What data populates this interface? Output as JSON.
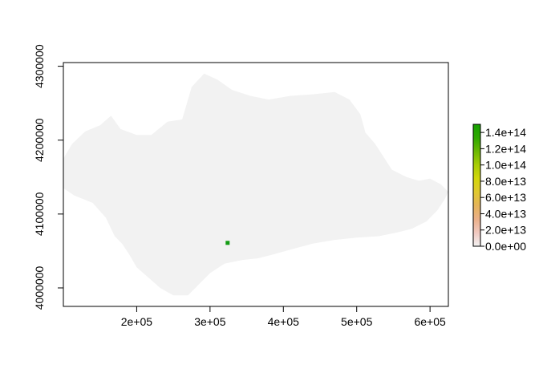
{
  "chart_data": {
    "type": "heatmap",
    "title": "",
    "xlabel": "",
    "ylabel": "",
    "xlim": [
      100000,
      625000
    ],
    "ylim": [
      3975000,
      4305000
    ],
    "x_ticks": [
      {
        "value": 200000,
        "label": "2e+05"
      },
      {
        "value": 300000,
        "label": "3e+05"
      },
      {
        "value": 400000,
        "label": "4e+05"
      },
      {
        "value": 500000,
        "label": "5e+05"
      },
      {
        "value": 600000,
        "label": "6e+05"
      }
    ],
    "y_ticks": [
      {
        "value": 4000000,
        "label": "4000000"
      },
      {
        "value": 4100000,
        "label": "4100000"
      },
      {
        "value": 4200000,
        "label": "4200000"
      },
      {
        "value": 4300000,
        "label": "4300000"
      }
    ],
    "region_fill": "#f2f2f2",
    "region_outline": [
      [
        100000,
        4175000
      ],
      [
        112000,
        4195000
      ],
      [
        130000,
        4212000
      ],
      [
        150000,
        4220000
      ],
      [
        165000,
        4233000
      ],
      [
        178000,
        4215000
      ],
      [
        200000,
        4207000
      ],
      [
        220000,
        4207000
      ],
      [
        242000,
        4225000
      ],
      [
        262000,
        4228000
      ],
      [
        275000,
        4272000
      ],
      [
        292000,
        4290000
      ],
      [
        310000,
        4282000
      ],
      [
        330000,
        4268000
      ],
      [
        355000,
        4260000
      ],
      [
        380000,
        4255000
      ],
      [
        410000,
        4260000
      ],
      [
        440000,
        4262000
      ],
      [
        470000,
        4265000
      ],
      [
        490000,
        4255000
      ],
      [
        505000,
        4235000
      ],
      [
        512000,
        4210000
      ],
      [
        525000,
        4195000
      ],
      [
        535000,
        4180000
      ],
      [
        548000,
        4160000
      ],
      [
        568000,
        4150000
      ],
      [
        585000,
        4145000
      ],
      [
        600000,
        4148000
      ],
      [
        615000,
        4140000
      ],
      [
        625000,
        4130000
      ],
      [
        620000,
        4120000
      ],
      [
        610000,
        4105000
      ],
      [
        595000,
        4090000
      ],
      [
        575000,
        4080000
      ],
      [
        555000,
        4075000
      ],
      [
        530000,
        4070000
      ],
      [
        500000,
        4068000
      ],
      [
        470000,
        4065000
      ],
      [
        440000,
        4060000
      ],
      [
        410000,
        4052000
      ],
      [
        385000,
        4045000
      ],
      [
        365000,
        4040000
      ],
      [
        345000,
        4038000
      ],
      [
        320000,
        4033000
      ],
      [
        300000,
        4020000
      ],
      [
        285000,
        4005000
      ],
      [
        270000,
        3990000
      ],
      [
        250000,
        3990000
      ],
      [
        232000,
        4000000
      ],
      [
        215000,
        4015000
      ],
      [
        200000,
        4028000
      ],
      [
        190000,
        4045000
      ],
      [
        180000,
        4060000
      ],
      [
        170000,
        4070000
      ],
      [
        158000,
        4095000
      ],
      [
        140000,
        4115000
      ],
      [
        115000,
        4125000
      ],
      [
        100000,
        4135000
      ]
    ],
    "highlight_cell": {
      "x": 324000,
      "y": 4061000,
      "value": 145000000000000.0,
      "color": "#149c14"
    },
    "legend": {
      "position": "right",
      "min": 0,
      "max": 150000000000000.0,
      "colors": [
        "#f2f2f2",
        "#f0c8c0",
        "#ebb089",
        "#e5b45a",
        "#e0c82f",
        "#d2d60a",
        "#a8cc05",
        "#6bb802",
        "#2ea800",
        "#16a000"
      ],
      "ticks": [
        {
          "value": 0,
          "label": "0.0e+00"
        },
        {
          "value": 20000000000000.0,
          "label": "2.0e+13"
        },
        {
          "value": 40000000000000.0,
          "label": "4.0e+13"
        },
        {
          "value": 60000000000000.0,
          "label": "6.0e+13"
        },
        {
          "value": 80000000000000.0,
          "label": "8.0e+13"
        },
        {
          "value": 100000000000000.0,
          "label": "1.0e+14"
        },
        {
          "value": 120000000000000.0,
          "label": "1.2e+14"
        },
        {
          "value": 140000000000000.0,
          "label": "1.4e+14"
        }
      ]
    }
  }
}
